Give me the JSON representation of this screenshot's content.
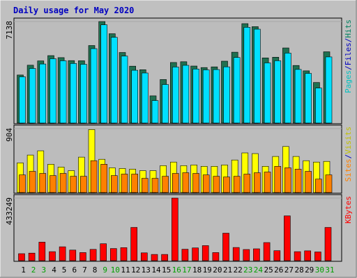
{
  "colors": {
    "background": "#c0c0c0",
    "panel_bg": "#bebebe",
    "title": "#0000c0",
    "hits_back": "#207050",
    "hits_front": "#00e0ff",
    "visits": "#ffff00",
    "sites": "#ff8000",
    "kbytes": "#ff0000",
    "weekend_day": "#00a000",
    "weekday": "#000000"
  },
  "chart_data": {
    "type": "bar",
    "title": "Daily usage for May 2020",
    "categories": [
      "1",
      "2",
      "3",
      "4",
      "5",
      "6",
      "7",
      "8",
      "9",
      "10",
      "11",
      "12",
      "13",
      "14",
      "15",
      "16",
      "17",
      "18",
      "19",
      "20",
      "21",
      "22",
      "23",
      "24",
      "25",
      "26",
      "27",
      "28",
      "29",
      "30",
      "31"
    ],
    "weekend_days": [
      "2",
      "3",
      "9",
      "10",
      "16",
      "17",
      "23",
      "24",
      "30",
      "31"
    ],
    "panels": [
      {
        "id": "hits",
        "max_label": "7138",
        "ymax": 7138,
        "legend": [
          {
            "text": "Pages",
            "color": "#00c0c0"
          },
          {
            "text": "/",
            "color": "#0000c0"
          },
          {
            "text": "Files",
            "color": "#0000c0"
          },
          {
            "text": "/",
            "color": "#0000c0"
          },
          {
            "text": "Hits",
            "color": "#008060"
          }
        ],
        "series": [
          {
            "name": "Hits",
            "color": "#207050",
            "values": [
              3380,
              4070,
              4370,
              4740,
              4600,
              4390,
              4380,
              5450,
              7138,
              6280,
              4960,
              4000,
              3750,
              1910,
              3060,
              4260,
              4310,
              4010,
              3900,
              3950,
              4350,
              4980,
              6990,
              6780,
              4580,
              4630,
              5280,
              4050,
              3670,
              2850,
              5010
            ]
          },
          {
            "name": "Files",
            "color": "#00e0ff",
            "values": [
              3250,
              3840,
              4150,
              4520,
              4380,
              4190,
              4130,
              5230,
              6910,
              6030,
              4710,
              3710,
              3520,
              1580,
              2710,
              3940,
              4060,
              3800,
              3740,
              3760,
              3950,
              4610,
              6730,
              6600,
              4230,
              4380,
              4920,
              3770,
              3490,
              2460,
              4650
            ]
          }
        ]
      },
      {
        "id": "visits",
        "max_label": "904",
        "ymax": 904,
        "legend": [
          {
            "text": "Sites",
            "color": "#ff8000"
          },
          {
            "text": "/",
            "color": "#0000c0"
          },
          {
            "text": "Visits",
            "color": "#c0c000"
          }
        ],
        "series": [
          {
            "name": "Visits",
            "color": "#ffff00",
            "values": [
              420,
              530,
              590,
              400,
              360,
              310,
              500,
              890,
              470,
              350,
              340,
              330,
              310,
              310,
              380,
              430,
              380,
              390,
              370,
              370,
              390,
              460,
              560,
              550,
              370,
              510,
              650,
              510,
              450,
              430,
              440
            ]
          },
          {
            "name": "Sites",
            "color": "#ff8000",
            "values": [
              250,
              300,
              270,
              240,
              270,
              230,
              230,
              450,
              400,
              240,
              260,
              260,
              200,
              200,
              230,
              270,
              280,
              270,
              250,
              230,
              220,
              230,
              260,
              280,
              290,
              370,
              350,
              330,
              300,
              190,
              250
            ]
          }
        ]
      },
      {
        "id": "kbytes",
        "max_label": "433249",
        "ymax": 433249,
        "legend": [
          {
            "text": "KBytes",
            "color": "#ff0000"
          }
        ],
        "series": [
          {
            "name": "KBytes",
            "color": "#ff0000",
            "values": [
              48000,
              52000,
              128000,
              62000,
              96000,
              73000,
              56000,
              78000,
              117000,
              84000,
              90000,
              230000,
              54000,
              43000,
              43000,
              433249,
              79000,
              88000,
              104000,
              56000,
              190000,
              91000,
              77000,
              82000,
              125000,
              69000,
              310000,
              62000,
              68000,
              60000,
              230000
            ]
          }
        ]
      }
    ]
  }
}
